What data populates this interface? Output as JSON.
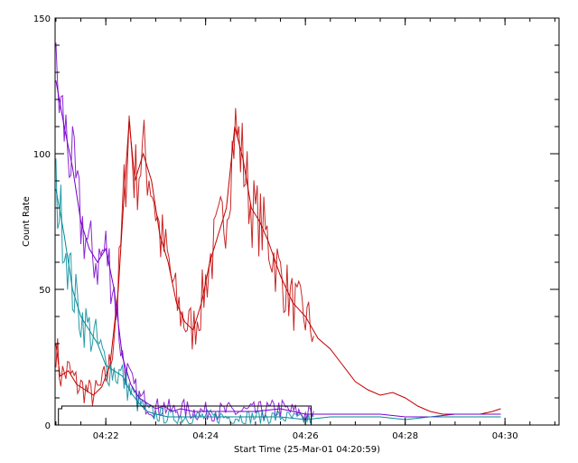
{
  "chart_data": {
    "type": "line",
    "title": "",
    "xlabel": "Start Time (25-Mar-01 04:20:59)",
    "ylabel": "Count Rate",
    "x_unit": "time of day (HH:MM)",
    "xlim": [
      "04:20:59",
      "04:31:05"
    ],
    "ylim": [
      0,
      150
    ],
    "xticks": [
      "04:22",
      "04:24",
      "04:26",
      "04:28",
      "04:30"
    ],
    "yticks": [
      0,
      50,
      100,
      150
    ],
    "grid": false,
    "legend": "none",
    "series": [
      {
        "color": "#c00000",
        "points": [
          [
            "04:21:00",
            30
          ],
          [
            "04:21:05",
            18
          ],
          [
            "04:21:15",
            20
          ],
          [
            "04:21:25",
            15
          ],
          [
            "04:21:35",
            13
          ],
          [
            "04:21:45",
            11
          ],
          [
            "04:21:55",
            14
          ],
          [
            "04:22:05",
            22
          ],
          [
            "04:22:15",
            50
          ],
          [
            "04:22:22",
            85
          ],
          [
            "04:22:28",
            112
          ],
          [
            "04:22:35",
            90
          ],
          [
            "04:22:45",
            100
          ],
          [
            "04:22:55",
            90
          ],
          [
            "04:23:05",
            70
          ],
          [
            "04:23:15",
            60
          ],
          [
            "04:23:25",
            45
          ],
          [
            "04:23:35",
            38
          ],
          [
            "04:23:45",
            35
          ],
          [
            "04:23:55",
            45
          ],
          [
            "04:24:05",
            60
          ],
          [
            "04:24:15",
            70
          ],
          [
            "04:24:25",
            80
          ],
          [
            "04:24:35",
            110
          ],
          [
            "04:24:45",
            98
          ],
          [
            "04:24:55",
            80
          ],
          [
            "04:25:05",
            75
          ],
          [
            "04:25:15",
            68
          ],
          [
            "04:25:30",
            55
          ],
          [
            "04:25:45",
            45
          ],
          [
            "04:26:00",
            40
          ],
          [
            "04:26:15",
            32
          ],
          [
            "04:26:30",
            28
          ],
          [
            "04:26:45",
            22
          ],
          [
            "04:27:00",
            16
          ],
          [
            "04:27:15",
            13
          ],
          [
            "04:27:30",
            11
          ],
          [
            "04:27:45",
            12
          ],
          [
            "04:28:00",
            10
          ],
          [
            "04:28:15",
            7
          ],
          [
            "04:28:30",
            5
          ],
          [
            "04:28:45",
            4
          ],
          [
            "04:29:00",
            4
          ],
          [
            "04:29:15",
            4
          ],
          [
            "04:29:30",
            4
          ],
          [
            "04:29:45",
            5
          ],
          [
            "04:29:55",
            6
          ]
        ]
      },
      {
        "color": "#7700cc",
        "points": [
          [
            "04:21:00",
            127
          ],
          [
            "04:21:10",
            110
          ],
          [
            "04:21:20",
            95
          ],
          [
            "04:21:30",
            75
          ],
          [
            "04:21:40",
            65
          ],
          [
            "04:21:50",
            60
          ],
          [
            "04:22:00",
            65
          ],
          [
            "04:22:10",
            50
          ],
          [
            "04:22:20",
            25
          ],
          [
            "04:22:30",
            15
          ],
          [
            "04:22:40",
            10
          ],
          [
            "04:22:50",
            8
          ],
          [
            "04:23:00",
            6
          ],
          [
            "04:23:10",
            7
          ],
          [
            "04:23:20",
            5
          ],
          [
            "04:23:30",
            6
          ],
          [
            "04:23:45",
            5
          ],
          [
            "04:24:00",
            5
          ],
          [
            "04:24:30",
            5
          ],
          [
            "04:25:00",
            5
          ],
          [
            "04:25:30",
            6
          ],
          [
            "04:26:00",
            4
          ],
          [
            "04:26:30",
            4
          ],
          [
            "04:27:00",
            4
          ],
          [
            "04:27:30",
            4
          ],
          [
            "04:28:00",
            3
          ],
          [
            "04:28:30",
            3
          ],
          [
            "04:29:00",
            4
          ],
          [
            "04:29:30",
            4
          ],
          [
            "04:29:55",
            4
          ]
        ]
      },
      {
        "color": "#008a9a",
        "points": [
          [
            "04:21:00",
            87
          ],
          [
            "04:21:10",
            70
          ],
          [
            "04:21:20",
            50
          ],
          [
            "04:21:30",
            40
          ],
          [
            "04:21:40",
            35
          ],
          [
            "04:21:50",
            30
          ],
          [
            "04:22:00",
            22
          ],
          [
            "04:22:10",
            20
          ],
          [
            "04:22:20",
            18
          ],
          [
            "04:22:30",
            12
          ],
          [
            "04:22:40",
            8
          ],
          [
            "04:22:50",
            5
          ],
          [
            "04:23:00",
            4
          ],
          [
            "04:23:15",
            3
          ],
          [
            "04:23:30",
            3
          ],
          [
            "04:24:00",
            3
          ],
          [
            "04:24:30",
            3
          ],
          [
            "04:25:00",
            3
          ],
          [
            "04:25:30",
            3
          ],
          [
            "04:26:00",
            2
          ],
          [
            "04:26:30",
            3
          ],
          [
            "04:27:00",
            3
          ],
          [
            "04:27:30",
            3
          ],
          [
            "04:28:00",
            2
          ],
          [
            "04:28:30",
            3
          ],
          [
            "04:29:00",
            3
          ],
          [
            "04:29:30",
            3
          ],
          [
            "04:29:55",
            3
          ]
        ]
      },
      {
        "color": "#000000",
        "points": [
          [
            "04:21:03",
            0
          ],
          [
            "04:21:03",
            6
          ],
          [
            "04:21:07",
            6
          ],
          [
            "04:21:07",
            7
          ],
          [
            "04:26:07",
            7
          ],
          [
            "04:26:07",
            0
          ]
        ]
      }
    ]
  }
}
